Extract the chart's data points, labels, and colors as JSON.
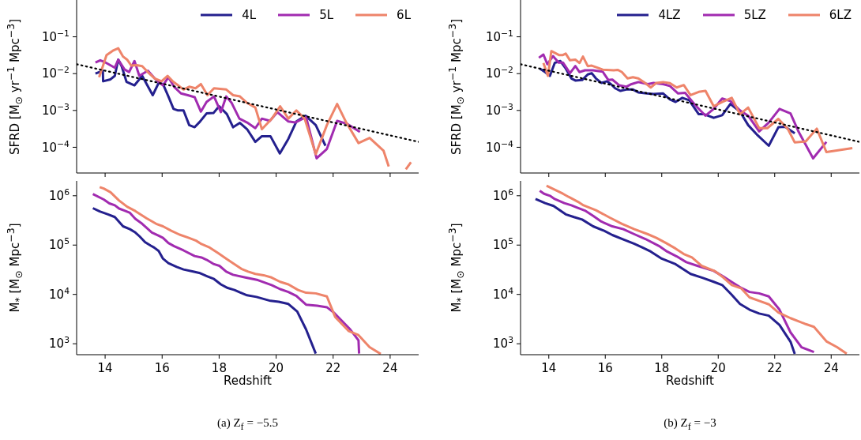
{
  "chart_data": [
    {
      "type": "line",
      "ylabel": "SFRD [M$_{⊙}$ yr$^{−1}$ Mpc$^{−3}$]",
      "xlim": [
        13,
        25
      ],
      "xticks": [
        14,
        16,
        18,
        20,
        22,
        24
      ],
      "ylim": [
        2e-05,
        1
      ],
      "yticks": [
        {
          "value": 0.0001,
          "label": "10$^{−4}$"
        },
        {
          "value": 0.001,
          "label": "10$^{−3}$"
        },
        {
          "value": 0.01,
          "label": "10$^{−2}$"
        },
        {
          "value": 0.1,
          "label": "10$^{−1}$"
        }
      ],
      "log": "y",
      "tick_labels": "y",
      "legend": "top right",
      "series": [
        {
          "name": "4L",
          "color": "#24208e",
          "x": [
            13.66,
            13.92,
            13.93,
            14.19,
            14.34,
            14.46,
            14.58,
            14.75,
            15.03,
            15.3,
            15.67,
            15.88,
            16.03,
            16.22,
            16.4,
            16.56,
            16.75,
            16.95,
            17.14,
            17.33,
            17.56,
            17.8,
            18.0,
            18.27,
            18.49,
            18.73,
            18.98,
            19.27,
            19.5,
            19.8,
            20.13,
            20.43,
            20.71,
            21.03,
            21.39,
            21.73
          ],
          "values": [
            0.01,
            0.012,
            0.0062,
            0.007,
            0.0087,
            0.024,
            0.016,
            0.006,
            0.0048,
            0.0087,
            0.0026,
            0.0056,
            0.0052,
            0.0024,
            0.0011,
            0.001,
            0.001,
            0.0004,
            0.00035,
            0.0005,
            0.00083,
            0.00085,
            0.0013,
            0.0008,
            0.00035,
            0.00046,
            0.00031,
            0.00014,
            0.0002,
            0.0002,
            6.8e-05,
            0.00017,
            0.0005,
            0.00072,
            0.0004,
            0.00011
          ]
        },
        {
          "name": "5L",
          "color": "#a12bb0",
          "x": [
            13.66,
            13.83,
            14.02,
            14.34,
            14.46,
            14.68,
            14.84,
            15.03,
            15.2,
            15.5,
            15.74,
            16.03,
            16.22,
            16.42,
            16.66,
            16.9,
            17.14,
            17.36,
            17.56,
            17.82,
            18.06,
            18.25,
            18.44,
            18.71,
            18.98,
            19.27,
            19.5,
            19.78,
            20.04,
            20.43,
            20.67,
            21.05,
            21.42,
            21.78,
            22.14,
            22.5,
            22.94
          ],
          "values": [
            0.02,
            0.023,
            0.02,
            0.0145,
            0.024,
            0.013,
            0.011,
            0.022,
            0.0087,
            0.012,
            0.0074,
            0.0048,
            0.008,
            0.0044,
            0.0029,
            0.0026,
            0.0023,
            0.00093,
            0.0017,
            0.0024,
            0.0009,
            0.0024,
            0.0016,
            0.0006,
            0.00047,
            0.00033,
            0.0006,
            0.00052,
            0.0009,
            0.0005,
            0.00047,
            0.00066,
            5e-05,
            9e-05,
            0.00052,
            0.00043,
            0.00026
          ]
        },
        {
          "name": "6L",
          "color": "#ee846a",
          "x": [
            13.79,
            14.05,
            14.27,
            14.46,
            14.63,
            14.77,
            14.92,
            15.11,
            15.3,
            15.5,
            15.74,
            15.98,
            16.19,
            16.37,
            16.56,
            16.75,
            16.95,
            17.17,
            17.36,
            17.59,
            17.82,
            18.25,
            18.49,
            18.73,
            18.98,
            19.27,
            19.5,
            19.85,
            20.14,
            20.43,
            20.71,
            21.0,
            21.39,
            21.78,
            22.14,
            22.46,
            22.89,
            23.28,
            23.77,
            23.95,
            24.2,
            24.55,
            24.73
          ],
          "values": [
            0.008,
            0.032,
            0.042,
            0.049,
            0.029,
            0.024,
            0.0165,
            0.017,
            0.016,
            0.011,
            0.0074,
            0.0062,
            0.0087,
            0.0062,
            0.0048,
            0.0037,
            0.0044,
            0.004,
            0.0052,
            0.0026,
            0.004,
            0.0037,
            0.0026,
            0.0024,
            0.0016,
            0.0012,
            0.00031,
            0.0006,
            0.0013,
            0.0006,
            0.001,
            0.0006,
            6.5e-05,
            0.0004,
            0.0015,
            0.00047,
            0.00013,
            0.00018,
            8e-05,
            3e-05,
            null,
            2.5e-05,
            3.9e-05
          ]
        },
        {
          "type": "line",
          "color": "#000000",
          "line_style": "dotted",
          "x": [
            13,
            25
          ],
          "values": [
            0.018,
            0.00014
          ]
        }
      ]
    },
    {
      "type": "line",
      "xlabel": "Redshift",
      "ylabel": "M$_{*}$ [M$_{⊙}$ Mpc$^{−3}$]",
      "annotations": [
        "(a) Z$_{f}$ = −5.5"
      ],
      "xlim": [
        13,
        25
      ],
      "xticks": [
        14,
        16,
        18,
        20,
        22,
        24
      ],
      "ylim": [
        600,
        2000000
      ],
      "yticks": [
        {
          "value": 1000,
          "label": "10$^{3}$"
        },
        {
          "value": 10000,
          "label": "10$^{4}$"
        },
        {
          "value": 100000,
          "label": "10$^{5}$"
        },
        {
          "value": 1000000,
          "label": "10$^{6}$"
        }
      ],
      "log": "y",
      "series": [
        {
          "color": "#24208e",
          "x": [
            13.57,
            13.81,
            14.1,
            14.34,
            14.63,
            14.87,
            15.06,
            15.21,
            15.4,
            15.59,
            15.72,
            15.88,
            16.03,
            16.22,
            16.51,
            16.75,
            17.09,
            17.33,
            17.57,
            17.82,
            18.06,
            18.3,
            18.54,
            18.73,
            18.98,
            19.31,
            19.8,
            20.09,
            20.43,
            20.74,
            21.05,
            21.39
          ],
          "values": [
            560000,
            480000,
            420000,
            370000,
            240000,
            210000,
            180000,
            150000,
            115000,
            98000,
            89000,
            76000,
            53000,
            43000,
            36000,
            32000,
            29000,
            27000,
            23500,
            20500,
            16000,
            13500,
            12300,
            11000,
            9600,
            8900,
            7400,
            7100,
            6400,
            4500,
            1950,
            630
          ]
        },
        {
          "color": "#a12bb0",
          "x": [
            13.57,
            13.95,
            14.15,
            14.34,
            14.49,
            14.68,
            14.87,
            15.06,
            15.3,
            15.64,
            15.88,
            16.03,
            16.22,
            16.42,
            16.75,
            17.14,
            17.38,
            17.57,
            17.82,
            18.01,
            18.25,
            18.49,
            18.92,
            19.36,
            19.84,
            20.14,
            20.43,
            20.71,
            21.05,
            21.44,
            21.78,
            22.02,
            22.31,
            22.6,
            22.89,
            22.91
          ],
          "values": [
            1080000,
            840000,
            700000,
            640000,
            550000,
            500000,
            450000,
            340000,
            270000,
            180000,
            155000,
            140000,
            110000,
            95000,
            78000,
            60000,
            56000,
            50000,
            41000,
            38000,
            29000,
            25000,
            22000,
            19500,
            15500,
            12800,
            11200,
            9300,
            6200,
            5900,
            5500,
            4300,
            2900,
            1950,
            1170,
            630
          ]
        },
        {
          "color": "#ee846a",
          "x": [
            13.81,
            13.95,
            14.19,
            14.49,
            14.77,
            15.06,
            15.45,
            15.79,
            16.03,
            16.32,
            16.61,
            16.9,
            17.19,
            17.38,
            17.67,
            17.96,
            18.25,
            18.54,
            18.78,
            19.02,
            19.27,
            19.56,
            19.84,
            20.14,
            20.43,
            20.77,
            21.05,
            21.39,
            21.78,
            22.07,
            22.55,
            22.89,
            23.28,
            23.67
          ],
          "values": [
            1500000,
            1400000,
            1180000,
            800000,
            600000,
            490000,
            350000,
            270000,
            240000,
            195000,
            163000,
            143000,
            123000,
            105000,
            89000,
            69000,
            53000,
            41000,
            33000,
            29000,
            26000,
            24500,
            22000,
            18000,
            16000,
            12300,
            10800,
            10500,
            9100,
            3500,
            1800,
            1500,
            850,
            620
          ]
        }
      ]
    },
    {
      "type": "line",
      "ylabel": "SFRD [M$_{⊙}$ yr$^{−1}$ Mpc$^{−3}$]",
      "xlim": [
        13,
        25
      ],
      "xticks": [
        14,
        16,
        18,
        20,
        22,
        24
      ],
      "ylim": [
        2e-05,
        1
      ],
      "yticks": [
        {
          "value": 0.0001,
          "label": "10$^{−4}$"
        },
        {
          "value": 0.001,
          "label": "10$^{−3}$"
        },
        {
          "value": 0.01,
          "label": "10$^{−2}$"
        },
        {
          "value": 0.1,
          "label": "10$^{−1}$"
        }
      ],
      "log": "y",
      "tick_labels": "y",
      "legend": "top right",
      "series": [
        {
          "name": "4LZ",
          "color": "#24208e",
          "x": [
            13.68,
            13.87,
            14.04,
            14.21,
            14.41,
            14.6,
            14.8,
            14.94,
            15.18,
            15.38,
            15.52,
            15.67,
            15.86,
            16.06,
            16.2,
            16.35,
            16.54,
            16.74,
            16.98,
            17.17,
            17.47,
            17.71,
            18.05,
            18.29,
            18.49,
            18.73,
            18.97,
            19.31,
            19.5,
            19.84,
            20.14,
            20.43,
            20.77,
            21.06,
            21.4,
            21.79,
            22.13,
            22.37,
            22.71
          ],
          "values": [
            0.0138,
            0.011,
            0.0087,
            0.0195,
            0.022,
            0.0138,
            0.0074,
            0.0065,
            0.0067,
            0.0095,
            0.0103,
            0.0074,
            0.0056,
            0.0062,
            0.0052,
            0.004,
            0.0034,
            0.0037,
            0.0037,
            0.0031,
            0.0029,
            0.0028,
            0.0029,
            0.002,
            0.0017,
            0.0022,
            0.0019,
            0.00079,
            0.00079,
            0.00063,
            0.00074,
            0.0015,
            0.00093,
            0.0004,
            0.00021,
            0.00011,
            0.00035,
            0.00036,
            0.00024
          ]
        },
        {
          "name": "5LZ",
          "color": "#a12bb0",
          "x": [
            13.65,
            13.81,
            13.95,
            14.15,
            14.35,
            14.5,
            14.75,
            14.94,
            15.09,
            15.28,
            15.57,
            15.91,
            16.11,
            16.25,
            16.5,
            16.74,
            16.93,
            17.17,
            17.51,
            17.71,
            18.05,
            18.29,
            18.58,
            18.83,
            19.17,
            19.55,
            19.84,
            20.14,
            20.43,
            20.77,
            21.06,
            21.45,
            21.79,
            22.17,
            22.56,
            22.85,
            23.36,
            23.83
          ],
          "values": [
            0.027,
            0.033,
            0.018,
            0.03,
            0.02,
            0.02,
            0.0103,
            0.016,
            0.011,
            0.0123,
            0.0123,
            0.0113,
            0.0067,
            0.0069,
            0.0048,
            0.0044,
            0.0052,
            0.0059,
            0.0052,
            0.0056,
            0.0052,
            0.0046,
            0.0029,
            0.003,
            0.00144,
            0.00072,
            0.0011,
            0.0021,
            0.0018,
            0.001,
            0.00072,
            0.00027,
            0.00047,
            0.0011,
            0.00083,
            0.00026,
            5e-05,
            0.00014
          ]
        },
        {
          "name": "6LZ",
          "color": "#ee846a",
          "x": [
            13.81,
            13.97,
            14.09,
            14.36,
            14.5,
            14.6,
            14.75,
            14.94,
            15.09,
            15.21,
            15.38,
            15.52,
            15.72,
            15.91,
            16.3,
            16.45,
            16.59,
            16.79,
            16.98,
            17.17,
            17.37,
            17.61,
            17.81,
            18.05,
            18.29,
            18.53,
            18.78,
            19.02,
            19.31,
            19.55,
            19.84,
            20.14,
            20.48,
            20.77,
            21.06,
            21.45,
            21.74,
            22.13,
            22.47,
            22.71,
            23.1,
            23.49,
            23.83,
            24.75
          ],
          "values": [
            0.0195,
            0.0087,
            0.041,
            0.032,
            0.032,
            0.035,
            0.023,
            0.024,
            0.0195,
            0.029,
            0.016,
            0.0165,
            0.0146,
            0.0128,
            0.0123,
            0.0126,
            0.011,
            0.0074,
            0.008,
            0.0074,
            0.0059,
            0.0042,
            0.0056,
            0.0059,
            0.0055,
            0.0042,
            0.0049,
            0.0026,
            0.0032,
            0.0034,
            0.0013,
            0.0017,
            0.0022,
            0.00079,
            0.0012,
            0.00033,
            0.00033,
            0.00059,
            0.00031,
            0.000135,
            0.000144,
            0.00032,
            7.4e-05,
            9.5e-05
          ]
        },
        {
          "type": "line",
          "color": "#000000",
          "line_style": "dotted",
          "x": [
            13,
            25
          ],
          "values": [
            0.018,
            0.00014
          ]
        }
      ]
    },
    {
      "type": "line",
      "xlabel": "Redshift",
      "ylabel": "M$_{*}$ [M$_{⊙}$ Mpc$^{−3}$]",
      "annotations": [
        "(b) Z$_{f}$ = −3"
      ],
      "xlim": [
        13,
        25
      ],
      "xticks": [
        14,
        16,
        18,
        20,
        22,
        24
      ],
      "ylim": [
        600,
        2000000
      ],
      "yticks": [
        {
          "value": 1000,
          "label": "10$^{3}$"
        },
        {
          "value": 10000,
          "label": "10$^{4}$"
        },
        {
          "value": 100000,
          "label": "10$^{5}$"
        },
        {
          "value": 1000000,
          "label": "10$^{6}$"
        }
      ],
      "log": "y",
      "series": [
        {
          "color": "#24208e",
          "x": [
            13.53,
            13.87,
            14.17,
            14.6,
            14.89,
            15.18,
            15.57,
            15.96,
            16.25,
            16.64,
            17.03,
            17.32,
            17.61,
            18.0,
            18.49,
            19.02,
            19.46,
            19.84,
            20.14,
            20.48,
            20.77,
            21.11,
            21.45,
            21.79,
            22.17,
            22.56,
            22.71
          ],
          "values": [
            860000,
            710000,
            620000,
            420000,
            370000,
            330000,
            240000,
            195000,
            160000,
            130000,
            106000,
            89000,
            74000,
            53000,
            41000,
            26000,
            21500,
            18000,
            15500,
            9800,
            6400,
            4900,
            4100,
            3700,
            2400,
            1100,
            620
          ]
        },
        {
          "color": "#a12bb0",
          "x": [
            13.68,
            13.83,
            14.04,
            14.21,
            14.55,
            14.8,
            14.99,
            15.28,
            15.57,
            15.86,
            16.25,
            16.64,
            17.03,
            17.42,
            17.9,
            18.19,
            18.53,
            18.87,
            19.26,
            19.84,
            20.18,
            20.48,
            20.77,
            21.11,
            21.45,
            21.79,
            22.17,
            22.56,
            22.95,
            23.39
          ],
          "values": [
            1260000,
            1100000,
            1000000,
            860000,
            710000,
            640000,
            580000,
            500000,
            390000,
            300000,
            240000,
            210000,
            166000,
            133000,
            96000,
            74000,
            59000,
            45000,
            38000,
            30000,
            23000,
            17800,
            14000,
            11200,
            10500,
            9100,
            4900,
            1700,
            850,
            680
          ]
        },
        {
          "color": "#ee846a",
          "x": [
            13.92,
            14.5,
            14.7,
            15.04,
            15.23,
            15.67,
            16.16,
            16.59,
            17.03,
            17.51,
            17.81,
            18.15,
            18.49,
            18.78,
            19.07,
            19.41,
            19.89,
            20.18,
            20.48,
            20.82,
            21.11,
            21.45,
            21.79,
            22.13,
            22.56,
            23.1,
            23.39,
            23.83,
            24.21,
            24.55
          ],
          "values": [
            1600000,
            1100000,
            950000,
            750000,
            640000,
            510000,
            360000,
            270000,
            210000,
            166000,
            140000,
            110000,
            85000,
            66000,
            56000,
            38000,
            29500,
            22000,
            15500,
            13200,
            8700,
            7400,
            6300,
            4300,
            3300,
            2500,
            2200,
            1120,
            850,
            630
          ]
        }
      ]
    }
  ]
}
